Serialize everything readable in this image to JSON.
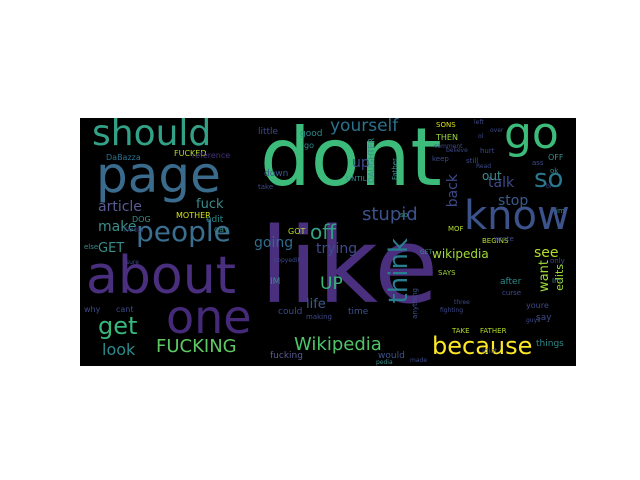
{
  "wordcloud": {
    "words": [
      {
        "text": "dont",
        "color": "#3dbb7a"
      },
      {
        "text": "like",
        "color": "#4a2f7e"
      },
      {
        "text": "about",
        "color": "#4a2f7e"
      },
      {
        "text": "page",
        "color": "#3a6b8c"
      },
      {
        "text": "should",
        "color": "#33a185"
      },
      {
        "text": "go",
        "color": "#3dbb7a"
      },
      {
        "text": "one",
        "color": "#462a7a"
      },
      {
        "text": "know",
        "color": "#3b528b"
      },
      {
        "text": "people",
        "color": "#3a6f8f"
      },
      {
        "text": "because",
        "color": "#fde725"
      },
      {
        "text": "FUCKING",
        "color": "#5ec962"
      },
      {
        "text": "Wikipedia",
        "color": "#4fc46a"
      },
      {
        "text": "get",
        "color": "#38b77b"
      },
      {
        "text": "think",
        "color": "#287d8e"
      },
      {
        "text": "so",
        "color": "#2a788e"
      },
      {
        "text": "yourself",
        "color": "#2c728e"
      },
      {
        "text": "stupid",
        "color": "#3b528b"
      },
      {
        "text": "off",
        "color": "#33a185"
      },
      {
        "text": "UP",
        "color": "#37b67c"
      },
      {
        "text": "look",
        "color": "#2c8a8c"
      },
      {
        "text": "talk",
        "color": "#3e4a89"
      },
      {
        "text": "stop",
        "color": "#3a5b8c"
      },
      {
        "text": "see",
        "color": "#b5de2b"
      },
      {
        "text": "want",
        "color": "#9fda3a"
      },
      {
        "text": "back",
        "color": "#3e4989"
      },
      {
        "text": "trying",
        "color": "#3e4a89"
      },
      {
        "text": "going",
        "color": "#2f6c8e"
      },
      {
        "text": "make",
        "color": "#3b8d8c"
      },
      {
        "text": "article",
        "color": "#5a5c95"
      },
      {
        "text": "fuck",
        "color": "#3b8d8c"
      },
      {
        "text": "GET",
        "color": "#3b8d8c"
      },
      {
        "text": "life",
        "color": "#3a5b8c"
      },
      {
        "text": "up",
        "color": "#3e4a89"
      },
      {
        "text": "out",
        "color": "#3b8d8c"
      },
      {
        "text": "edits",
        "color": "#9fda3a"
      },
      {
        "text": "wikipedia",
        "color": "#a0da39"
      },
      {
        "text": "DOG",
        "color": "#3b8d8c"
      },
      {
        "text": "MOTHER",
        "color": "#d8e219"
      },
      {
        "text": "FUCKED",
        "color": "#b5de2b"
      },
      {
        "text": "DaBazza",
        "color": "#2c728e"
      },
      {
        "text": "little",
        "color": "#3e4a89"
      },
      {
        "text": "good",
        "color": "#2c8a8c"
      },
      {
        "text": "down",
        "color": "#3a5b8c"
      },
      {
        "text": "reference",
        "color": "#46337e"
      },
      {
        "text": "DAUGHTER",
        "color": "#3b8d8c"
      },
      {
        "text": "UNTIL",
        "color": "#3b8d8c"
      },
      {
        "text": "SONS",
        "color": "#d8e219"
      },
      {
        "text": "THEN",
        "color": "#9fda3a"
      },
      {
        "text": "FATHER",
        "color": "#b5de2b"
      },
      {
        "text": "TAKE",
        "color": "#b5de2b"
      },
      {
        "text": "SAYS",
        "color": "#9fda3a"
      },
      {
        "text": "BEGINS",
        "color": "#b5de2b"
      },
      {
        "text": "MOF",
        "color": "#b5de2b"
      },
      {
        "text": "why",
        "color": "#3e4a89"
      },
      {
        "text": "cant",
        "color": "#3e4a89"
      },
      {
        "text": "fucking",
        "color": "#5a5c95"
      },
      {
        "text": "would",
        "color": "#3b528b"
      },
      {
        "text": "things",
        "color": "#2c8a8c"
      },
      {
        "text": "after",
        "color": "#2c8a8c"
      },
      {
        "text": "say",
        "color": "#3e4a89"
      },
      {
        "text": "youre",
        "color": "#3e4a89"
      },
      {
        "text": "edit",
        "color": "#2c8a8c"
      },
      {
        "text": "IM",
        "color": "#3b8d8c"
      },
      {
        "text": "time",
        "color": "#3b528b"
      },
      {
        "text": "could",
        "color": "#3e4a89"
      },
      {
        "text": "GOT",
        "color": "#b5de2b"
      },
      {
        "text": "OFF",
        "color": "#3b8d8c"
      },
      {
        "text": "ass",
        "color": "#3e4a89"
      },
      {
        "text": "ok",
        "color": "#3b8d8c"
      },
      {
        "text": "im",
        "color": "#3b8d8c"
      },
      {
        "text": "go",
        "color": "#2c8a8c"
      },
      {
        "text": "gay",
        "color": "#3b8d8c"
      },
      {
        "text": "hurt",
        "color": "#3e4a89"
      },
      {
        "text": "still",
        "color": "#3e4a89"
      },
      {
        "text": "keep",
        "color": "#3e4a89"
      },
      {
        "text": "take",
        "color": "#3e4a89"
      },
      {
        "text": "curse",
        "color": "#3e4a89"
      },
      {
        "text": "else",
        "color": "#3b8d8c"
      },
      {
        "text": "wrote",
        "color": "#3e4a89"
      },
      {
        "text": "anything",
        "color": "#3b528b"
      },
      {
        "text": "making",
        "color": "#3e4a89"
      },
      {
        "text": "only",
        "color": "#3e4a89"
      },
      {
        "text": "Im",
        "color": "#3b8d8c"
      },
      {
        "text": "so",
        "color": "#3b8d8c"
      },
      {
        "text": "pedia",
        "color": "#3b8d8c"
      },
      {
        "text": "left",
        "color": "#3e4a89"
      },
      {
        "text": "comment",
        "color": "#3e4a89"
      },
      {
        "text": "believe",
        "color": "#3e4a89"
      },
      {
        "text": "Read",
        "color": "#3e4a89"
      },
      {
        "text": "GET",
        "color": "#3b8d8c"
      },
      {
        "text": "FAMILY",
        "color": "#3e4a89"
      },
      {
        "text": "sure",
        "color": "#3e4a89"
      },
      {
        "text": "guys",
        "color": "#3e4a89"
      },
      {
        "text": "three",
        "color": "#3e4a89"
      },
      {
        "text": "fighting",
        "color": "#3e4a89"
      },
      {
        "text": "copyedit",
        "color": "#3e4a89"
      },
      {
        "text": "Father",
        "color": "#3b8d8c"
      },
      {
        "text": "idiot",
        "color": "#3e4a89"
      },
      {
        "text": "bl",
        "color": "#3e4a89"
      },
      {
        "text": "ol",
        "color": "#3e4a89"
      },
      {
        "text": "over",
        "color": "#3e4a89"
      },
      {
        "text": "made",
        "color": "#3e4a89"
      }
    ]
  }
}
